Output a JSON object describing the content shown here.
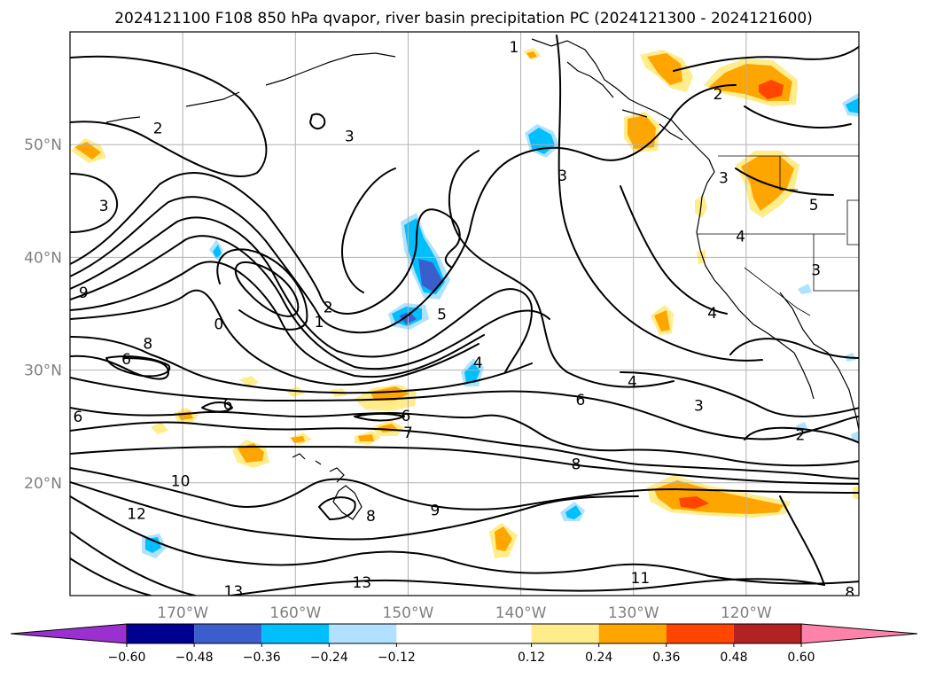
{
  "chart_data": {
    "type": "heatmap",
    "title": "2024121100 F108 850 hPa qvapor, river basin precipitation PC (2024121300 - 2024121600)",
    "map": {
      "projection": "PlateCarree",
      "lon_range": [
        -180,
        -110
      ],
      "lat_range": [
        10,
        60
      ],
      "gridlines": true
    },
    "x_ticks": [
      {
        "value": -170,
        "label": "170°W"
      },
      {
        "value": -160,
        "label": "160°W"
      },
      {
        "value": -150,
        "label": "150°W"
      },
      {
        "value": -140,
        "label": "140°W"
      },
      {
        "value": -130,
        "label": "130°W"
      },
      {
        "value": -120,
        "label": "120°W"
      }
    ],
    "y_ticks": [
      {
        "value": 50,
        "label": "50°N"
      },
      {
        "value": 40,
        "label": "40°N"
      },
      {
        "value": 30,
        "label": "30°N"
      },
      {
        "value": 20,
        "label": "20°N"
      }
    ],
    "colorbar": {
      "levels": [
        -0.6,
        -0.48,
        -0.36,
        -0.24,
        -0.12,
        0.12,
        0.24,
        0.36,
        0.48,
        0.6
      ],
      "tick_labels": [
        "−0.60",
        "−0.48",
        "−0.36",
        "−0.24",
        "−0.12",
        "0.12",
        "0.24",
        "0.36",
        "0.48",
        "0.60"
      ],
      "colors": [
        "#9b30d0",
        "#000090",
        "#3a5fcd",
        "#00bfff",
        "#b0e2ff",
        "#ffffff",
        "#ffec8b",
        "#ffa500",
        "#ff4500",
        "#b22222",
        "#ff82ab"
      ],
      "extend": "both"
    },
    "contour_labels": [
      {
        "lon": -140.6,
        "lat": 58.6,
        "text": "1"
      },
      {
        "lon": -122.5,
        "lat": 54.4,
        "text": "2"
      },
      {
        "lon": -172.2,
        "lat": 51.4,
        "text": "2"
      },
      {
        "lon": -155.2,
        "lat": 50.7,
        "text": "3"
      },
      {
        "lon": -136.3,
        "lat": 47.2,
        "text": "3"
      },
      {
        "lon": -177.0,
        "lat": 44.5,
        "text": "3"
      },
      {
        "lon": -178.8,
        "lat": 36.8,
        "text": "9"
      },
      {
        "lon": -166.8,
        "lat": 34.0,
        "text": "0"
      },
      {
        "lon": -157.1,
        "lat": 35.5,
        "text": "2"
      },
      {
        "lon": -157.9,
        "lat": 34.2,
        "text": "1"
      },
      {
        "lon": -173.1,
        "lat": 32.3,
        "text": "8"
      },
      {
        "lon": -175.0,
        "lat": 30.9,
        "text": "6"
      },
      {
        "lon": -147.0,
        "lat": 34.9,
        "text": "5"
      },
      {
        "lon": -143.8,
        "lat": 30.6,
        "text": "4"
      },
      {
        "lon": -130.1,
        "lat": 28.9,
        "text": "4"
      },
      {
        "lon": -123.0,
        "lat": 35.0,
        "text": "4"
      },
      {
        "lon": -120.5,
        "lat": 41.8,
        "text": "4"
      },
      {
        "lon": -122.0,
        "lat": 47.0,
        "text": "3"
      },
      {
        "lon": -114.0,
        "lat": 44.6,
        "text": "5"
      },
      {
        "lon": -113.8,
        "lat": 38.8,
        "text": "3"
      },
      {
        "lon": -134.7,
        "lat": 27.3,
        "text": "6"
      },
      {
        "lon": -124.2,
        "lat": 26.8,
        "text": "3"
      },
      {
        "lon": -115.2,
        "lat": 24.2,
        "text": "2"
      },
      {
        "lon": -166.0,
        "lat": 26.9,
        "text": "6"
      },
      {
        "lon": -179.3,
        "lat": 25.8,
        "text": "6"
      },
      {
        "lon": -150.2,
        "lat": 25.9,
        "text": "6"
      },
      {
        "lon": -150.0,
        "lat": 24.4,
        "text": "7"
      },
      {
        "lon": -135.1,
        "lat": 21.6,
        "text": "8"
      },
      {
        "lon": -170.2,
        "lat": 20.1,
        "text": "10"
      },
      {
        "lon": -174.1,
        "lat": 17.2,
        "text": "12"
      },
      {
        "lon": -153.3,
        "lat": 17.0,
        "text": "8"
      },
      {
        "lon": -147.6,
        "lat": 17.5,
        "text": "9"
      },
      {
        "lon": -165.5,
        "lat": 10.3,
        "text": "13"
      },
      {
        "lon": -154.1,
        "lat": 11.1,
        "text": "13"
      },
      {
        "lon": -129.4,
        "lat": 11.5,
        "text": "11"
      },
      {
        "lon": -110.8,
        "lat": 10.2,
        "text": "8"
      }
    ]
  }
}
